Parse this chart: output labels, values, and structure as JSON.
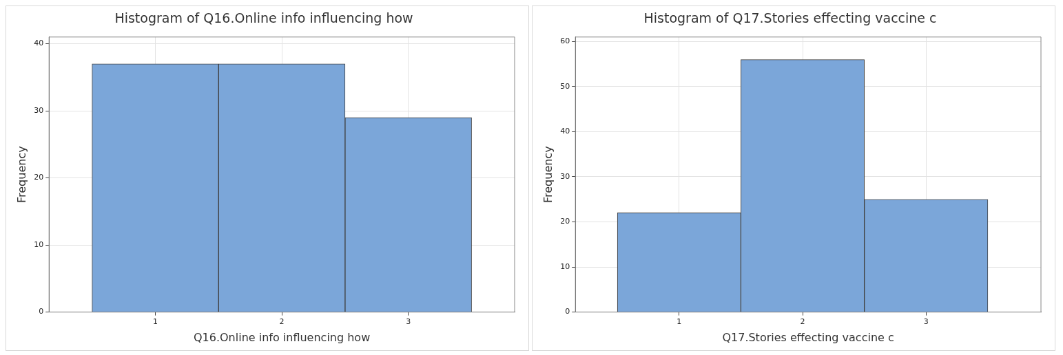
{
  "chart_data": [
    {
      "type": "histogram",
      "title": "Histogram of Q16.Online info influencing how",
      "xlabel": "Q16.Online info influencing how",
      "ylabel": "Frequency",
      "bins": [
        0.5,
        1.5,
        2.5,
        3.5
      ],
      "values": [
        37,
        37,
        29
      ],
      "color": "#7ba6d9",
      "xlim": [
        0.16,
        3.84
      ],
      "xticks": [
        1,
        2,
        3
      ],
      "ylim": [
        0,
        41
      ],
      "yticks": [
        0,
        10,
        20,
        30,
        40
      ],
      "grid": true
    },
    {
      "type": "histogram",
      "title": "Histogram of Q17.Stories effecting vaccine c",
      "xlabel": "Q17.Stories effecting vaccine c",
      "ylabel": "Frequency",
      "bins": [
        0.5,
        1.5,
        2.5,
        3.5
      ],
      "values": [
        22,
        56,
        25
      ],
      "color": "#7ba6d9",
      "xlim": [
        0.16,
        3.93
      ],
      "xticks": [
        1,
        2,
        3
      ],
      "ylim": [
        0,
        61
      ],
      "yticks": [
        0,
        10,
        20,
        30,
        40,
        50,
        60
      ],
      "grid": true
    }
  ]
}
